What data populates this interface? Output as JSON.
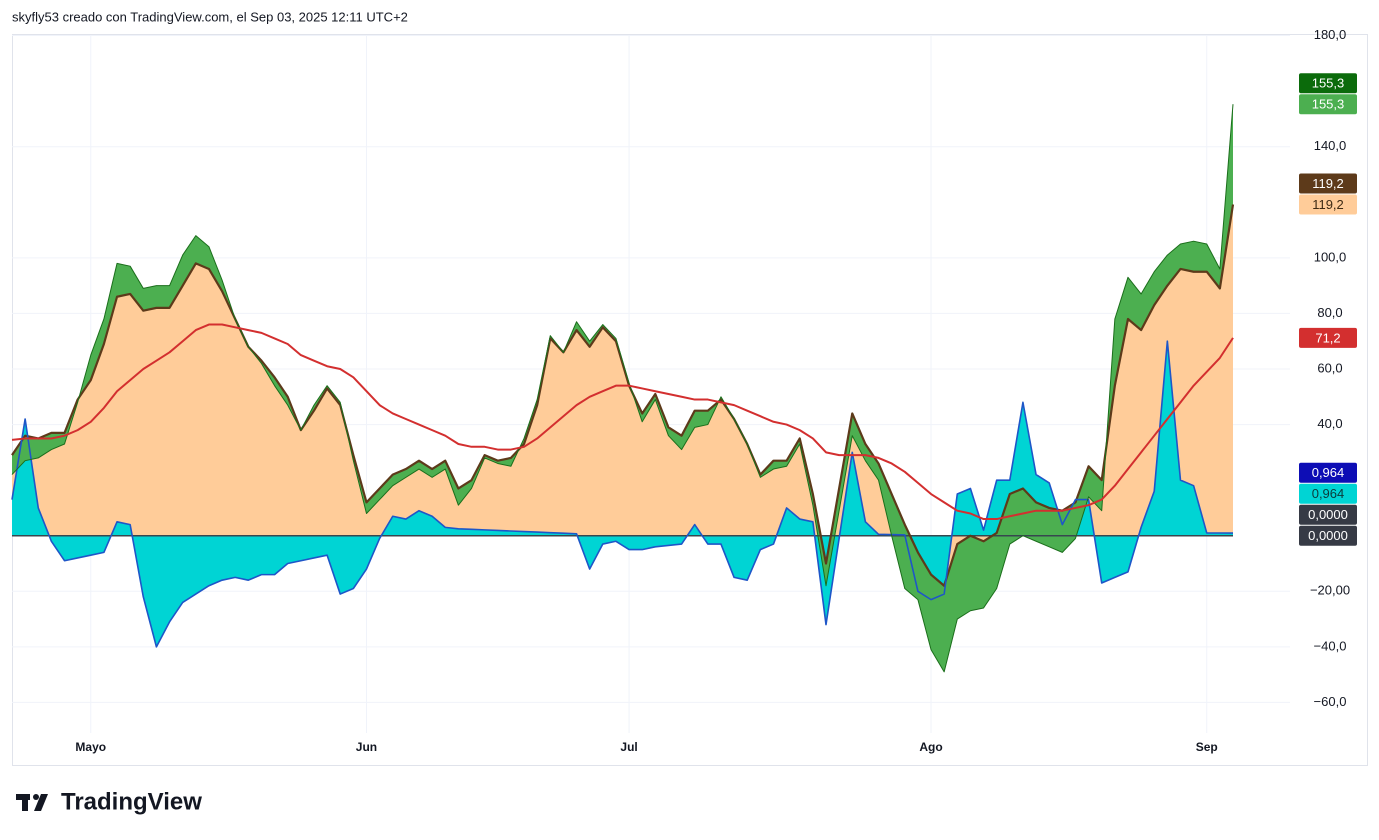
{
  "header": {
    "text": "skyfly53 creado con TradingView.com, el Sep 03, 2025 12:11 UTC+2"
  },
  "logo": {
    "text": "TradingView"
  },
  "chart_data": {
    "type": "area",
    "categories": [
      null,
      null,
      null,
      null,
      null,
      null,
      "Mayo",
      null,
      null,
      null,
      null,
      null,
      null,
      null,
      null,
      null,
      null,
      null,
      null,
      null,
      null,
      null,
      null,
      null,
      null,
      null,
      null,
      "Jun",
      null,
      null,
      null,
      null,
      null,
      null,
      null,
      null,
      null,
      null,
      null,
      null,
      null,
      null,
      null,
      null,
      null,
      null,
      null,
      "Jul",
      null,
      null,
      null,
      null,
      null,
      null,
      null,
      null,
      null,
      null,
      null,
      null,
      null,
      null,
      null,
      null,
      null,
      null,
      null,
      null,
      null,
      null,
      "Ago",
      null,
      null,
      null,
      null,
      null,
      null,
      null,
      null,
      null,
      null,
      null,
      null,
      null,
      null,
      null,
      null,
      null,
      null,
      null,
      null,
      "Sep",
      null,
      null
    ],
    "ylim": [
      -71,
      180.2
    ],
    "yticks": [
      {
        "value": 180,
        "label": "180,0"
      },
      {
        "value": 140,
        "label": "140,0"
      },
      {
        "value": 100,
        "label": "100,0"
      },
      {
        "value": 80,
        "label": "80,0"
      },
      {
        "value": 60,
        "label": "60,0"
      },
      {
        "value": 40,
        "label": "40,0"
      },
      {
        "value": -20,
        "label": "−20,00"
      },
      {
        "value": -40,
        "label": "−40,0"
      },
      {
        "value": -60,
        "label": "−60,0"
      }
    ],
    "grid": true,
    "series": [
      {
        "color": "#5d3a1a",
        "width": 2.2,
        "fill": "#ffcc99",
        "fill_to": "zero",
        "last_value_label": "119,2",
        "tags": [
          {
            "bg": "#5d3a1a",
            "fg": "#ffffff"
          },
          {
            "bg": "#ffcc99",
            "fg": "#3e2a14"
          }
        ],
        "values": [
          29,
          36,
          35,
          37,
          37,
          49,
          56,
          69,
          86,
          87,
          81,
          82,
          82,
          90,
          98,
          96,
          88,
          78,
          68,
          63,
          57,
          50,
          38,
          45,
          53,
          47,
          29,
          12,
          17,
          22,
          24,
          27,
          24,
          27,
          17,
          20,
          29,
          27,
          28,
          33,
          47,
          71,
          66,
          74,
          68,
          75,
          70,
          54,
          44,
          51,
          39,
          36,
          45,
          45,
          49,
          42,
          33,
          22,
          27,
          27,
          35,
          15,
          -10,
          17,
          44,
          33,
          26,
          15,
          4,
          -6,
          -14,
          -18,
          -3,
          0,
          -2,
          1,
          15,
          17,
          12,
          10,
          9,
          12,
          25,
          20,
          54,
          78,
          74,
          83,
          90,
          96,
          95,
          95,
          89,
          119.2
        ]
      },
      {
        "color": "#1e56c8",
        "width": 1.6,
        "fill": "#00d4d4",
        "fill_to": "zero",
        "last_value_label": "0,964",
        "tags": [
          {
            "bg": "#0d0db5",
            "fg": "#ffffff"
          },
          {
            "bg": "#00d4d4",
            "fg": "#0b3a3a"
          }
        ],
        "values": [
          13,
          42,
          10,
          -2,
          -9,
          -8,
          -7,
          -6,
          5,
          4,
          -22,
          -40,
          -31,
          -24,
          -21,
          -18,
          -16,
          -15,
          -16,
          -14,
          -14,
          -10,
          -9,
          -8,
          -7,
          -21,
          -19,
          -12,
          -1,
          7,
          6,
          9,
          7,
          3,
          2.5,
          2.3,
          2.1,
          1.9,
          1.7,
          1.5,
          1.3,
          1.1,
          0.9,
          0.7,
          -12,
          -3,
          -2,
          -5,
          -5,
          -4,
          -3.5,
          -3,
          4,
          -3,
          -3,
          -15,
          -16,
          -5,
          -3,
          10,
          6,
          5,
          -32,
          -1,
          30,
          5,
          0.5,
          0.4,
          0.3,
          -20,
          -23,
          -21,
          15,
          17,
          2,
          20,
          20,
          48,
          22,
          19,
          4,
          13,
          13,
          -17,
          -15,
          -13,
          3,
          16,
          70,
          20,
          18,
          1,
          0.98,
          0.964
        ]
      },
      {
        "color": "#1b6e1b",
        "width": 1,
        "fill": "#4caf50",
        "fill_to": 0,
        "last_value_label": "155,3",
        "tags": [
          {
            "bg": "#0b6b0b",
            "fg": "#ffffff"
          },
          {
            "bg": "#4caf50",
            "fg": "#ffffff"
          }
        ],
        "values": [
          22,
          27,
          28,
          31,
          33,
          48,
          65,
          78,
          98,
          97,
          89,
          90,
          90,
          101,
          108,
          104,
          92,
          78,
          68,
          62,
          54,
          47,
          38,
          47,
          54,
          48,
          27,
          8,
          13,
          18,
          21,
          24,
          21,
          24,
          11,
          17,
          28,
          26,
          25,
          35,
          49,
          72,
          66,
          77,
          70,
          76,
          71,
          55,
          41,
          49,
          36,
          31,
          39,
          40,
          50,
          42,
          33,
          21,
          24,
          25,
          33,
          11,
          -18,
          9,
          36,
          27,
          20,
          0,
          -19,
          -23,
          -41,
          -49,
          -30,
          -27,
          -26,
          -19,
          -3,
          0,
          -2,
          -4,
          -6,
          -1,
          14,
          9,
          78,
          93,
          87,
          95,
          101,
          105,
          106,
          105,
          96,
          155.3
        ]
      },
      {
        "color": "#d32f2f",
        "width": 2,
        "last_value_label": "71,2",
        "tags": [
          {
            "bg": "#d32f2f",
            "fg": "#ffffff"
          }
        ],
        "values": [
          34.5,
          35,
          35,
          35,
          36,
          38,
          41,
          46,
          52,
          56,
          60,
          63,
          66,
          70,
          74,
          76,
          76,
          75,
          74,
          73,
          71,
          69,
          65,
          63,
          61,
          60,
          57,
          52,
          47,
          44,
          42,
          40,
          38,
          36,
          33,
          32,
          32,
          31,
          31,
          32,
          35,
          39,
          43,
          47,
          50,
          52,
          54,
          54,
          53,
          52,
          51,
          50,
          49,
          49,
          48,
          47,
          45,
          43,
          41,
          40,
          38,
          35,
          30,
          29,
          29,
          29,
          28,
          26,
          23,
          19,
          15,
          12,
          9,
          8,
          6,
          6,
          7,
          8,
          9,
          9,
          9,
          10,
          11,
          13,
          18,
          24,
          30,
          36,
          42,
          48,
          54,
          59,
          64,
          71.2
        ]
      }
    ],
    "zero_line": {
      "value": 0,
      "label": "0,0000",
      "color": "#37474f",
      "tags": [
        {
          "bg": "#363a45",
          "fg": "#ffffff"
        },
        {
          "bg": "#363a45",
          "fg": "#ffffff"
        }
      ]
    }
  }
}
